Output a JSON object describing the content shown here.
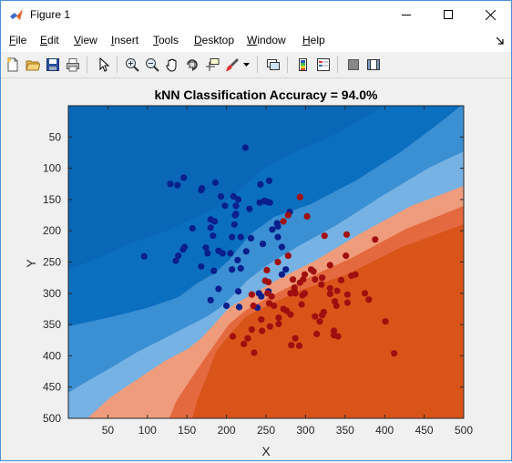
{
  "window": {
    "title": "Figure 1",
    "controls": {
      "minimize": "minimize",
      "maximize": "maximize",
      "close": "close"
    }
  },
  "menu": {
    "items": [
      {
        "label": "File",
        "key": "F",
        "rest": "ile"
      },
      {
        "label": "Edit",
        "key": "E",
        "rest": "dit"
      },
      {
        "label": "View",
        "key": "V",
        "rest": "iew"
      },
      {
        "label": "Insert",
        "key": "I",
        "rest": "nsert"
      },
      {
        "label": "Tools",
        "key": "T",
        "rest": "ools"
      },
      {
        "label": "Desktop",
        "key": "D",
        "rest": "esktop"
      },
      {
        "label": "Window",
        "key": "W",
        "rest": "indow"
      },
      {
        "label": "Help",
        "key": "H",
        "rest": "elp"
      }
    ]
  },
  "toolbar": {
    "buttons": [
      "new-figure-icon",
      "open-file-icon",
      "save-icon",
      "print-icon",
      "pointer-icon",
      "zoom-in-icon",
      "zoom-out-icon",
      "pan-hand-icon",
      "rotate-3d-icon",
      "data-cursor-icon",
      "brush-icon",
      "link-plot-icon",
      "colorbar-icon",
      "legend-icon",
      "hide-plot-tools-icon",
      "show-plot-tools-icon"
    ]
  },
  "chart_data": {
    "type": "scatter",
    "title": "kNN Classification Accuracy = 94.0%",
    "xlabel": "X",
    "ylabel": "Y",
    "xlim": [
      0,
      500
    ],
    "ylim": [
      500,
      0
    ],
    "y_reversed": true,
    "xticks": [
      50,
      100,
      150,
      200,
      250,
      300,
      350,
      400,
      450,
      500
    ],
    "yticks": [
      50,
      100,
      150,
      200,
      250,
      300,
      350,
      400,
      450,
      500
    ],
    "grid": false,
    "background": "decision-boundary contour: blue region upper-left, red/orange region lower-right",
    "colors": {
      "class1_point": "#0a1f8c",
      "class2_point": "#a00f0f",
      "blue_dark": "#0b6fc0",
      "blue_mid": "#3b8fd3",
      "blue_light": "#76b2e3",
      "red_light": "#ef9c7c",
      "red_mid": "#e5693f",
      "red_dark": "#d95419"
    },
    "series": [
      {
        "class": "blue",
        "points": [
          [
            224,
            67
          ],
          [
            146,
            115
          ],
          [
            129,
            125
          ],
          [
            138,
            127
          ],
          [
            186,
            123
          ],
          [
            169,
            132
          ],
          [
            168,
            135
          ],
          [
            254,
            120
          ],
          [
            243,
            126
          ],
          [
            193,
            145
          ],
          [
            209,
            145
          ],
          [
            215,
            150
          ],
          [
            212,
            160
          ],
          [
            249,
            153
          ],
          [
            252,
            154
          ],
          [
            255,
            155
          ],
          [
            248,
            152
          ],
          [
            242,
            155
          ],
          [
            198,
            160
          ],
          [
            212,
            160
          ],
          [
            212,
            173
          ],
          [
            229,
            165
          ],
          [
            211,
            175
          ],
          [
            210,
            190
          ],
          [
            264,
            188
          ],
          [
            265,
            193
          ],
          [
            280,
            170
          ],
          [
            258,
            198
          ],
          [
            265,
            210
          ],
          [
            180,
            182
          ],
          [
            185,
            185
          ],
          [
            180,
            195
          ],
          [
            157,
            196
          ],
          [
            183,
            208
          ],
          [
            207,
            210
          ],
          [
            218,
            210
          ],
          [
            246,
            221
          ],
          [
            270,
            226
          ],
          [
            205,
            236
          ],
          [
            218,
            260
          ],
          [
            207,
            262
          ],
          [
            174,
            227
          ],
          [
            176,
            236
          ],
          [
            190,
            232
          ],
          [
            195,
            236
          ],
          [
            214,
            247
          ],
          [
            139,
            240
          ],
          [
            136,
            248
          ],
          [
            147,
            226
          ],
          [
            96,
            241
          ],
          [
            168,
            257
          ],
          [
            184,
            264
          ],
          [
            275,
            262
          ],
          [
            270,
            270
          ],
          [
            253,
            297
          ],
          [
            244,
            305
          ],
          [
            190,
            293
          ],
          [
            215,
            297
          ],
          [
            241,
            300
          ],
          [
            216,
            322
          ],
          [
            200,
            320
          ],
          [
            239,
            323
          ],
          [
            180,
            311
          ],
          [
            145,
            230
          ],
          [
            225,
            233
          ],
          [
            231,
            212
          ]
        ]
      },
      {
        "class": "red",
        "points": [
          [
            293,
            146
          ],
          [
            272,
            185
          ],
          [
            302,
            177
          ],
          [
            278,
            175
          ],
          [
            352,
            206
          ],
          [
            324,
            208
          ],
          [
            388,
            214
          ],
          [
            351,
            240
          ],
          [
            278,
            240
          ],
          [
            265,
            250
          ],
          [
            307,
            262
          ],
          [
            299,
            270
          ],
          [
            297,
            278
          ],
          [
            321,
            275
          ],
          [
            331,
            255
          ],
          [
            310,
            265
          ],
          [
            312,
            278
          ],
          [
            320,
            286
          ],
          [
            345,
            279
          ],
          [
            358,
            272
          ],
          [
            363,
            270
          ],
          [
            340,
            296
          ],
          [
            331,
            301
          ],
          [
            331,
            292
          ],
          [
            353,
            302
          ],
          [
            353,
            315
          ],
          [
            337,
            313
          ],
          [
            321,
            335
          ],
          [
            339,
            320
          ],
          [
            284,
            278
          ],
          [
            286,
            291
          ],
          [
            293,
            283
          ],
          [
            286,
            297
          ],
          [
            253,
            282
          ],
          [
            287,
            300
          ],
          [
            281,
            300
          ],
          [
            299,
            300
          ],
          [
            296,
            303
          ],
          [
            295,
            318
          ],
          [
            281,
            334
          ],
          [
            260,
            320
          ],
          [
            272,
            325
          ],
          [
            276,
            328
          ],
          [
            234,
            320
          ],
          [
            232,
            302
          ],
          [
            251,
            263
          ],
          [
            249,
            280
          ],
          [
            252,
            300
          ],
          [
            257,
            305
          ],
          [
            254,
            316
          ],
          [
            244,
            342
          ],
          [
            266,
            339
          ],
          [
            227,
            372
          ],
          [
            222,
            381
          ],
          [
            235,
            395
          ],
          [
            287,
            372
          ],
          [
            282,
            383
          ],
          [
            292,
            384
          ],
          [
            336,
            360
          ],
          [
            336,
            367
          ],
          [
            341,
            369
          ],
          [
            401,
            345
          ],
          [
            412,
            396
          ],
          [
            375,
            300
          ],
          [
            380,
            310
          ],
          [
            323,
            330
          ],
          [
            312,
            337
          ],
          [
            266,
            349
          ],
          [
            255,
            353
          ],
          [
            318,
            345
          ],
          [
            314,
            365
          ],
          [
            232,
            358
          ],
          [
            245,
            360
          ],
          [
            208,
            369
          ]
        ]
      }
    ]
  }
}
